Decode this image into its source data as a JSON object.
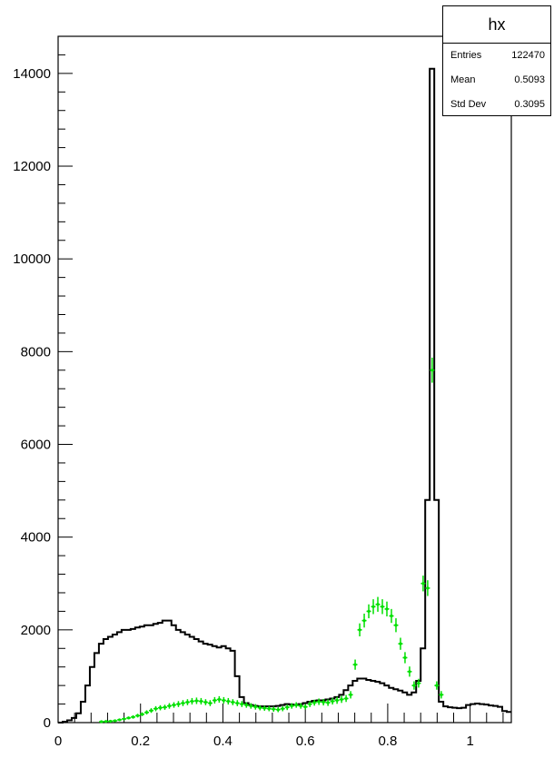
{
  "chart_data": {
    "type": "histogram",
    "title": "",
    "xlabel": "",
    "ylabel": "",
    "xlim": [
      0,
      1.1
    ],
    "ylim": [
      0,
      14800
    ],
    "x_ticks": [
      "0",
      "0.2",
      "0.4",
      "0.6",
      "0.8",
      "1"
    ],
    "y_ticks": [
      "0",
      "2000",
      "4000",
      "6000",
      "8000",
      "10000",
      "12000",
      "14000"
    ],
    "grid": false,
    "series": [
      {
        "style": "step",
        "color": "#000000",
        "x": [
          0.0,
          0.011,
          0.022,
          0.033,
          0.044,
          0.055,
          0.066,
          0.077,
          0.088,
          0.099,
          0.11,
          0.121,
          0.132,
          0.143,
          0.154,
          0.165,
          0.176,
          0.187,
          0.198,
          0.209,
          0.22,
          0.231,
          0.242,
          0.253,
          0.264,
          0.275,
          0.286,
          0.297,
          0.308,
          0.319,
          0.33,
          0.341,
          0.352,
          0.363,
          0.374,
          0.385,
          0.396,
          0.407,
          0.418,
          0.429,
          0.44,
          0.451,
          0.462,
          0.473,
          0.484,
          0.495,
          0.506,
          0.517,
          0.528,
          0.539,
          0.55,
          0.561,
          0.572,
          0.583,
          0.594,
          0.605,
          0.616,
          0.627,
          0.638,
          0.649,
          0.66,
          0.671,
          0.682,
          0.693,
          0.704,
          0.715,
          0.726,
          0.737,
          0.748,
          0.759,
          0.77,
          0.781,
          0.792,
          0.803,
          0.814,
          0.825,
          0.836,
          0.847,
          0.858,
          0.869,
          0.88,
          0.891,
          0.902,
          0.913,
          0.924,
          0.935,
          0.946,
          0.957,
          0.968,
          0.979,
          0.99,
          1.001,
          1.012,
          1.023,
          1.034,
          1.045,
          1.056,
          1.067,
          1.078,
          1.089
        ],
        "values": [
          0,
          20,
          50,
          100,
          200,
          450,
          800,
          1200,
          1500,
          1700,
          1800,
          1850,
          1900,
          1950,
          2000,
          2000,
          2020,
          2050,
          2070,
          2100,
          2100,
          2130,
          2150,
          2200,
          2200,
          2100,
          2000,
          1950,
          1900,
          1850,
          1800,
          1750,
          1700,
          1680,
          1650,
          1620,
          1650,
          1600,
          1550,
          1000,
          550,
          420,
          380,
          360,
          350,
          350,
          350,
          350,
          360,
          380,
          400,
          390,
          380,
          400,
          420,
          450,
          470,
          480,
          480,
          500,
          520,
          550,
          600,
          700,
          800,
          900,
          950,
          950,
          920,
          900,
          880,
          850,
          800,
          750,
          720,
          690,
          650,
          600,
          650,
          900,
          1600,
          4800,
          14100,
          4800,
          450,
          350,
          330,
          320,
          310,
          320,
          380,
          400,
          410,
          400,
          390,
          370,
          360,
          340,
          250,
          230
        ]
      },
      {
        "style": "error-markers",
        "color": "#00e000",
        "x": [
          0.105,
          0.116,
          0.127,
          0.138,
          0.149,
          0.16,
          0.171,
          0.182,
          0.193,
          0.204,
          0.215,
          0.226,
          0.237,
          0.248,
          0.259,
          0.27,
          0.281,
          0.292,
          0.303,
          0.314,
          0.325,
          0.336,
          0.347,
          0.358,
          0.369,
          0.38,
          0.391,
          0.402,
          0.413,
          0.424,
          0.435,
          0.446,
          0.457,
          0.468,
          0.479,
          0.49,
          0.501,
          0.512,
          0.523,
          0.534,
          0.545,
          0.556,
          0.567,
          0.578,
          0.589,
          0.6,
          0.611,
          0.622,
          0.633,
          0.644,
          0.655,
          0.666,
          0.677,
          0.688,
          0.699,
          0.71,
          0.721,
          0.732,
          0.743,
          0.754,
          0.765,
          0.776,
          0.787,
          0.798,
          0.809,
          0.82,
          0.831,
          0.842,
          0.853,
          0.864,
          0.875,
          0.886,
          0.897,
          0.908,
          0.919,
          0.93
        ],
        "values": [
          20,
          25,
          30,
          40,
          60,
          80,
          100,
          120,
          150,
          180,
          220,
          260,
          300,
          320,
          330,
          360,
          380,
          400,
          420,
          440,
          460,
          470,
          460,
          440,
          420,
          480,
          500,
          480,
          460,
          440,
          420,
          400,
          380,
          360,
          340,
          320,
          310,
          300,
          290,
          280,
          300,
          330,
          360,
          380,
          360,
          340,
          400,
          430,
          450,
          440,
          430,
          460,
          480,
          500,
          520,
          600,
          1250,
          2000,
          2200,
          2400,
          2500,
          2550,
          2500,
          2450,
          2300,
          2100,
          1700,
          1400,
          1100,
          800,
          850,
          3000,
          2900,
          7600,
          800,
          600
        ],
        "errors": [
          15,
          15,
          15,
          20,
          25,
          30,
          30,
          35,
          40,
          40,
          45,
          50,
          55,
          55,
          55,
          60,
          60,
          65,
          65,
          65,
          70,
          70,
          70,
          65,
          65,
          70,
          70,
          70,
          70,
          65,
          65,
          65,
          60,
          60,
          60,
          55,
          55,
          55,
          55,
          55,
          55,
          60,
          60,
          60,
          60,
          60,
          65,
          65,
          70,
          70,
          70,
          70,
          75,
          75,
          75,
          80,
          110,
          140,
          150,
          150,
          160,
          160,
          160,
          160,
          150,
          150,
          130,
          120,
          110,
          90,
          95,
          170,
          170,
          270,
          90,
          80
        ]
      }
    ]
  },
  "stats": {
    "title": "hx",
    "rows": [
      {
        "label": "Entries",
        "value": "122470"
      },
      {
        "label": "Mean",
        "value": "0.5093"
      },
      {
        "label": "Std Dev",
        "value": "0.3095"
      }
    ]
  }
}
